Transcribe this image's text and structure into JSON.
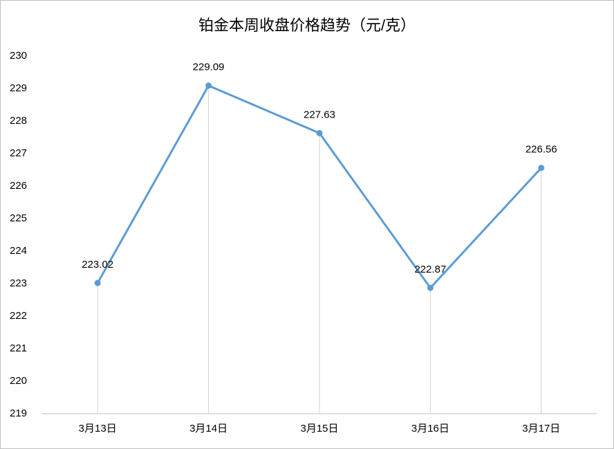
{
  "chart_data": {
    "type": "line",
    "title": "铂金本周收盘价格趋势（元/克）",
    "categories": [
      "3月13日",
      "3月14日",
      "3月15日",
      "3月16日",
      "3月17日"
    ],
    "values": [
      223.02,
      229.09,
      227.63,
      222.87,
      226.56
    ],
    "color": "#5b9bd5",
    "ylim": [
      219,
      230
    ],
    "yticks": [
      219,
      220,
      221,
      222,
      223,
      224,
      225,
      226,
      227,
      228,
      229,
      230
    ],
    "grid": false,
    "drop_lines": true
  }
}
